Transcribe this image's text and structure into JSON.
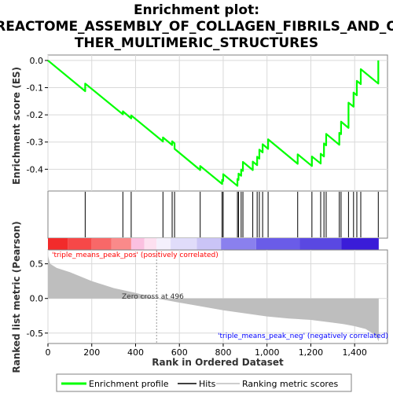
{
  "chart_data": {
    "type": "line",
    "title_lines": [
      "Enrichment plot:",
      "REACTOME_ASSEMBLY_OF_COLLAGEN_FIBRILS_AND_O",
      "THER_MULTIMERIC_STRUCTURES"
    ],
    "x_label": "Rank in Ordered Dataset",
    "top_y_label": "Enrichment score (ES)",
    "bottom_y_label": "Ranked list metric (Pearson)",
    "x_range": [
      0,
      1550
    ],
    "x_ticks": [
      0,
      200,
      400,
      600,
      800,
      1000,
      1200,
      1400
    ],
    "x_tick_labels": [
      "0",
      "200",
      "400",
      "600",
      "800",
      "1,000",
      "1,200",
      "1,400"
    ],
    "es_range": [
      -0.48,
      0.02
    ],
    "es_ticks": [
      0.0,
      -0.1,
      -0.2,
      -0.3,
      -0.4
    ],
    "es_tick_labels": [
      "0.0",
      "-0.1",
      "-0.2",
      "-0.3",
      "-0.4"
    ],
    "metric_range": [
      -0.65,
      0.7
    ],
    "metric_ticks": [
      0.5,
      0.0,
      -0.5
    ],
    "metric_tick_labels": [
      "0.5",
      "0.0",
      "-0.5"
    ],
    "n_genes": 1510,
    "hits": [
      170,
      342,
      380,
      525,
      567,
      578,
      695,
      795,
      800,
      865,
      870,
      882,
      890,
      935,
      955,
      965,
      980,
      1005,
      1140,
      1205,
      1245,
      1260,
      1270,
      1330,
      1338,
      1372,
      1395,
      1410,
      1428,
      1508
    ],
    "enrichment_profile": {
      "x": [
        0,
        170,
        170,
        342,
        342,
        380,
        380,
        525,
        525,
        567,
        567,
        578,
        578,
        695,
        695,
        795,
        795,
        800,
        800,
        865,
        865,
        870,
        870,
        882,
        882,
        890,
        890,
        935,
        935,
        955,
        955,
        965,
        965,
        980,
        980,
        1005,
        1005,
        1140,
        1140,
        1205,
        1205,
        1245,
        1245,
        1260,
        1260,
        1270,
        1270,
        1330,
        1330,
        1338,
        1338,
        1372,
        1372,
        1395,
        1395,
        1410,
        1410,
        1428,
        1428,
        1508,
        1508
      ],
      "y": [
        0.0,
        -0.113,
        -0.085,
        -0.198,
        -0.187,
        -0.213,
        -0.202,
        -0.298,
        -0.283,
        -0.311,
        -0.297,
        -0.305,
        -0.325,
        -0.403,
        -0.388,
        -0.454,
        -0.439,
        -0.443,
        -0.418,
        -0.461,
        -0.436,
        -0.439,
        -0.416,
        -0.424,
        -0.401,
        -0.406,
        -0.373,
        -0.403,
        -0.372,
        -0.385,
        -0.354,
        -0.361,
        -0.328,
        -0.338,
        -0.308,
        -0.325,
        -0.29,
        -0.38,
        -0.345,
        -0.388,
        -0.353,
        -0.379,
        -0.343,
        -0.353,
        -0.305,
        -0.312,
        -0.27,
        -0.31,
        -0.266,
        -0.271,
        -0.225,
        -0.248,
        -0.155,
        -0.17,
        -0.118,
        -0.128,
        -0.075,
        -0.087,
        -0.032,
        -0.085,
        0.0
      ]
    },
    "metric_curve": {
      "x": [
        0,
        10,
        40,
        100,
        200,
        300,
        400,
        496,
        600,
        800,
        1000,
        1100,
        1200,
        1300,
        1350,
        1400,
        1450,
        1480,
        1500,
        1510
      ],
      "y": [
        0.62,
        0.5,
        0.44,
        0.38,
        0.25,
        0.15,
        0.08,
        0.0,
        -0.06,
        -0.17,
        -0.26,
        -0.29,
        -0.31,
        -0.35,
        -0.37,
        -0.4,
        -0.44,
        -0.5,
        -0.56,
        -0.62
      ]
    },
    "zero_cross_x": 496,
    "annotations": {
      "pos_label": "'triple_means_peak_pos' (positively correlated)",
      "neg_label": "'triple_means_peak_neg' (negatively correlated)",
      "zero_cross": "Zero cross at 496"
    },
    "legend": {
      "items": [
        "Enrichment profile",
        "Hits",
        "Ranking metric scores"
      ],
      "position": "bottom"
    },
    "colors": {
      "profile": "#00ff00",
      "hits": "#000000",
      "metric_fill": "#bebebe",
      "pos_text": "#ff0000",
      "neg_text": "#0000ff",
      "grid": "#d9d9d9"
    },
    "bar_gradient": [
      {
        "from": 0,
        "to": 90,
        "color": "#f22b2b"
      },
      {
        "from": 90,
        "to": 200,
        "color": "#f64848"
      },
      {
        "from": 200,
        "to": 290,
        "color": "#f86868"
      },
      {
        "from": 290,
        "to": 380,
        "color": "#fa8a8a"
      },
      {
        "from": 380,
        "to": 440,
        "color": "#fbc0e0"
      },
      {
        "from": 440,
        "to": 496,
        "color": "#fde0f0"
      },
      {
        "from": 496,
        "to": 560,
        "color": "#f4f0fc"
      },
      {
        "from": 560,
        "to": 680,
        "color": "#e0dcfa"
      },
      {
        "from": 680,
        "to": 790,
        "color": "#cac4f6"
      },
      {
        "from": 790,
        "to": 950,
        "color": "#8a80ee"
      },
      {
        "from": 950,
        "to": 1150,
        "color": "#6a5ce8"
      },
      {
        "from": 1150,
        "to": 1340,
        "color": "#5a48e2"
      },
      {
        "from": 1340,
        "to": 1510,
        "color": "#3a1cd8"
      }
    ]
  }
}
